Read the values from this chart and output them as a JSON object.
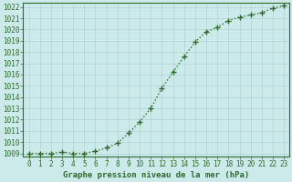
{
  "x": [
    0,
    1,
    2,
    3,
    4,
    5,
    6,
    7,
    8,
    9,
    10,
    11,
    12,
    13,
    14,
    15,
    16,
    17,
    18,
    19,
    20,
    21,
    22,
    23
  ],
  "y": [
    1009.0,
    1009.0,
    1009.0,
    1009.1,
    1009.0,
    1009.0,
    1009.2,
    1009.5,
    1009.9,
    1010.8,
    1011.8,
    1013.0,
    1014.8,
    1016.2,
    1017.6,
    1018.9,
    1019.8,
    1020.2,
    1020.8,
    1021.1,
    1021.3,
    1021.5,
    1021.9,
    1022.1
  ],
  "line_color": "#2d6a2d",
  "marker": "+",
  "marker_size": 4,
  "marker_linewidth": 1.0,
  "background_color": "#cceaea",
  "grid_color": "#b0d4d4",
  "xlabel": "Graphe pression niveau de la mer (hPa)",
  "xlabel_fontsize": 6.5,
  "ytick_min": 1009,
  "ytick_max": 1022,
  "xtick_min": 0,
  "xtick_max": 23,
  "tick_fontsize": 5.5,
  "linewidth": 1.0,
  "linestyle": "dotted"
}
